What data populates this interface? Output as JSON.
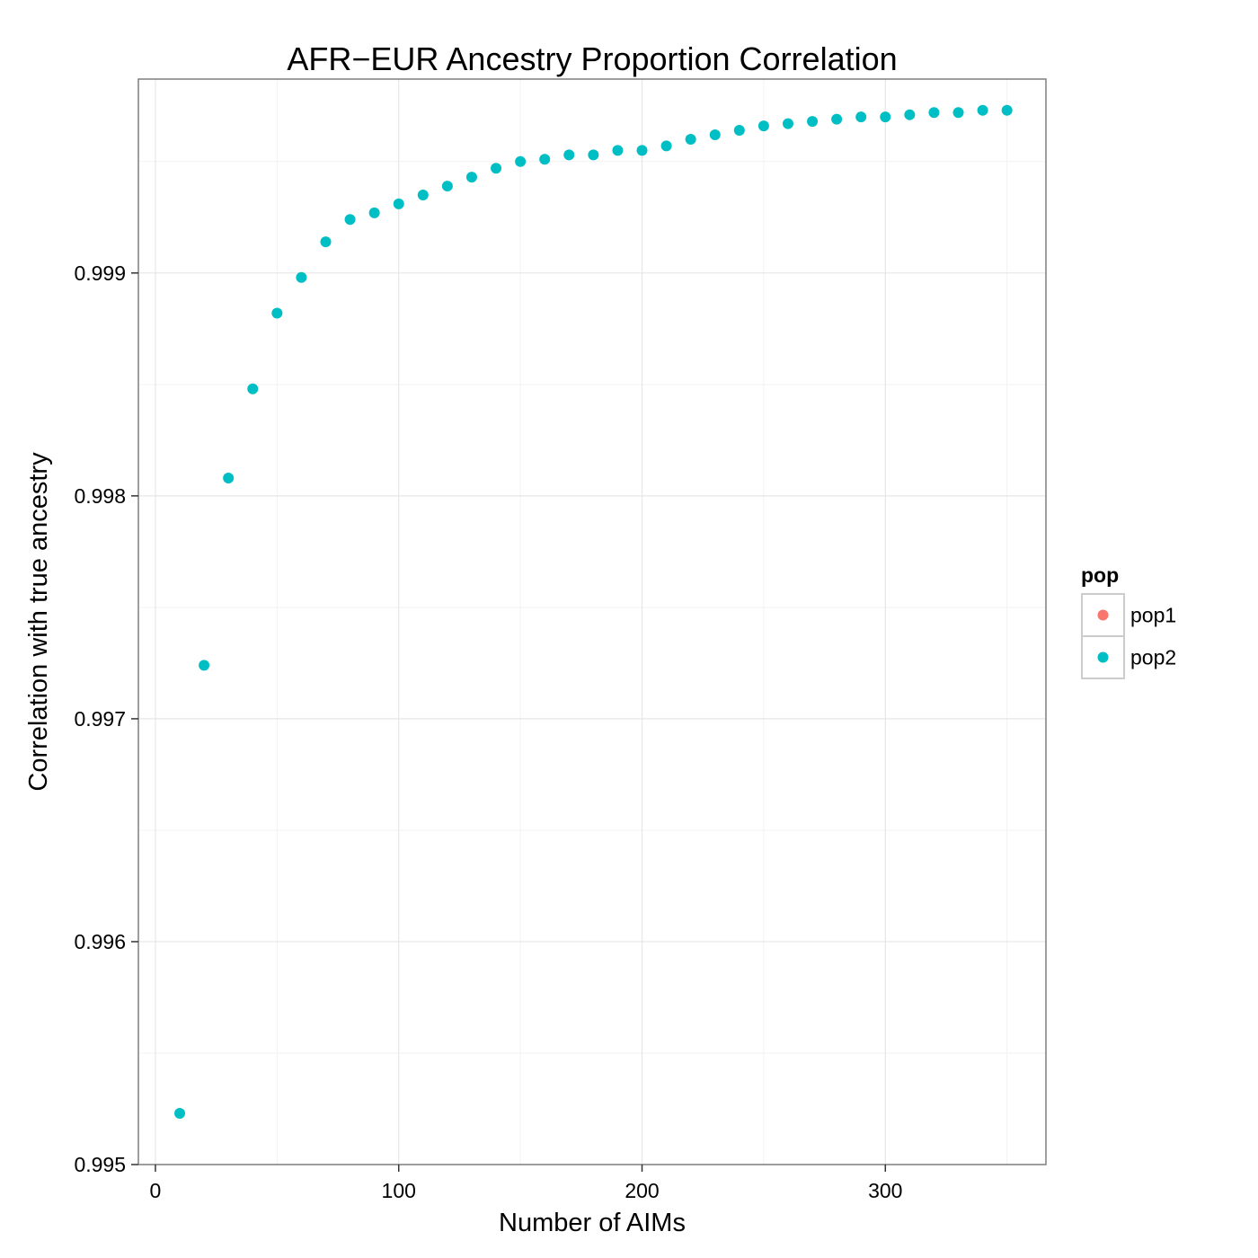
{
  "chart_data": {
    "type": "scatter",
    "title": "AFR−EUR Ancestry Proportion Correlation",
    "xlabel": "Number of AIMs",
    "ylabel": "Correlation with true ancestry",
    "xlim": [
      -7,
      366
    ],
    "ylim": [
      0.995,
      0.99987
    ],
    "x_ticks": [
      0,
      100,
      200,
      300
    ],
    "x_tick_labels": [
      "0",
      "100",
      "200",
      "300"
    ],
    "y_ticks": [
      0.995,
      0.996,
      0.997,
      0.998,
      0.999
    ],
    "y_tick_labels": [
      "0.995",
      "0.996",
      "0.997",
      "0.998",
      "0.999"
    ],
    "grid": true,
    "legend": {
      "title": "pop",
      "placement": "right",
      "entries": [
        {
          "name": "pop1",
          "color": "#F8766D"
        },
        {
          "name": "pop2",
          "color": "#00BFC4"
        }
      ]
    },
    "series": [
      {
        "name": "pop1",
        "color": "#F8766D",
        "x": [],
        "y": []
      },
      {
        "name": "pop2",
        "color": "#00BFC4",
        "x": [
          10,
          20,
          30,
          40,
          50,
          60,
          70,
          80,
          90,
          100,
          110,
          120,
          130,
          140,
          150,
          160,
          170,
          180,
          190,
          200,
          210,
          220,
          230,
          240,
          250,
          260,
          270,
          280,
          290,
          300,
          310,
          320,
          330,
          340,
          350
        ],
        "y": [
          0.99523,
          0.99724,
          0.99808,
          0.99848,
          0.99882,
          0.99898,
          0.99914,
          0.99924,
          0.99927,
          0.99931,
          0.99935,
          0.99939,
          0.99943,
          0.99947,
          0.9995,
          0.99951,
          0.99953,
          0.99953,
          0.99955,
          0.99955,
          0.99957,
          0.9996,
          0.99962,
          0.99964,
          0.99966,
          0.99967,
          0.99968,
          0.99969,
          0.9997,
          0.9997,
          0.99971,
          0.99972,
          0.99972,
          0.99973,
          0.99973
        ]
      }
    ]
  }
}
